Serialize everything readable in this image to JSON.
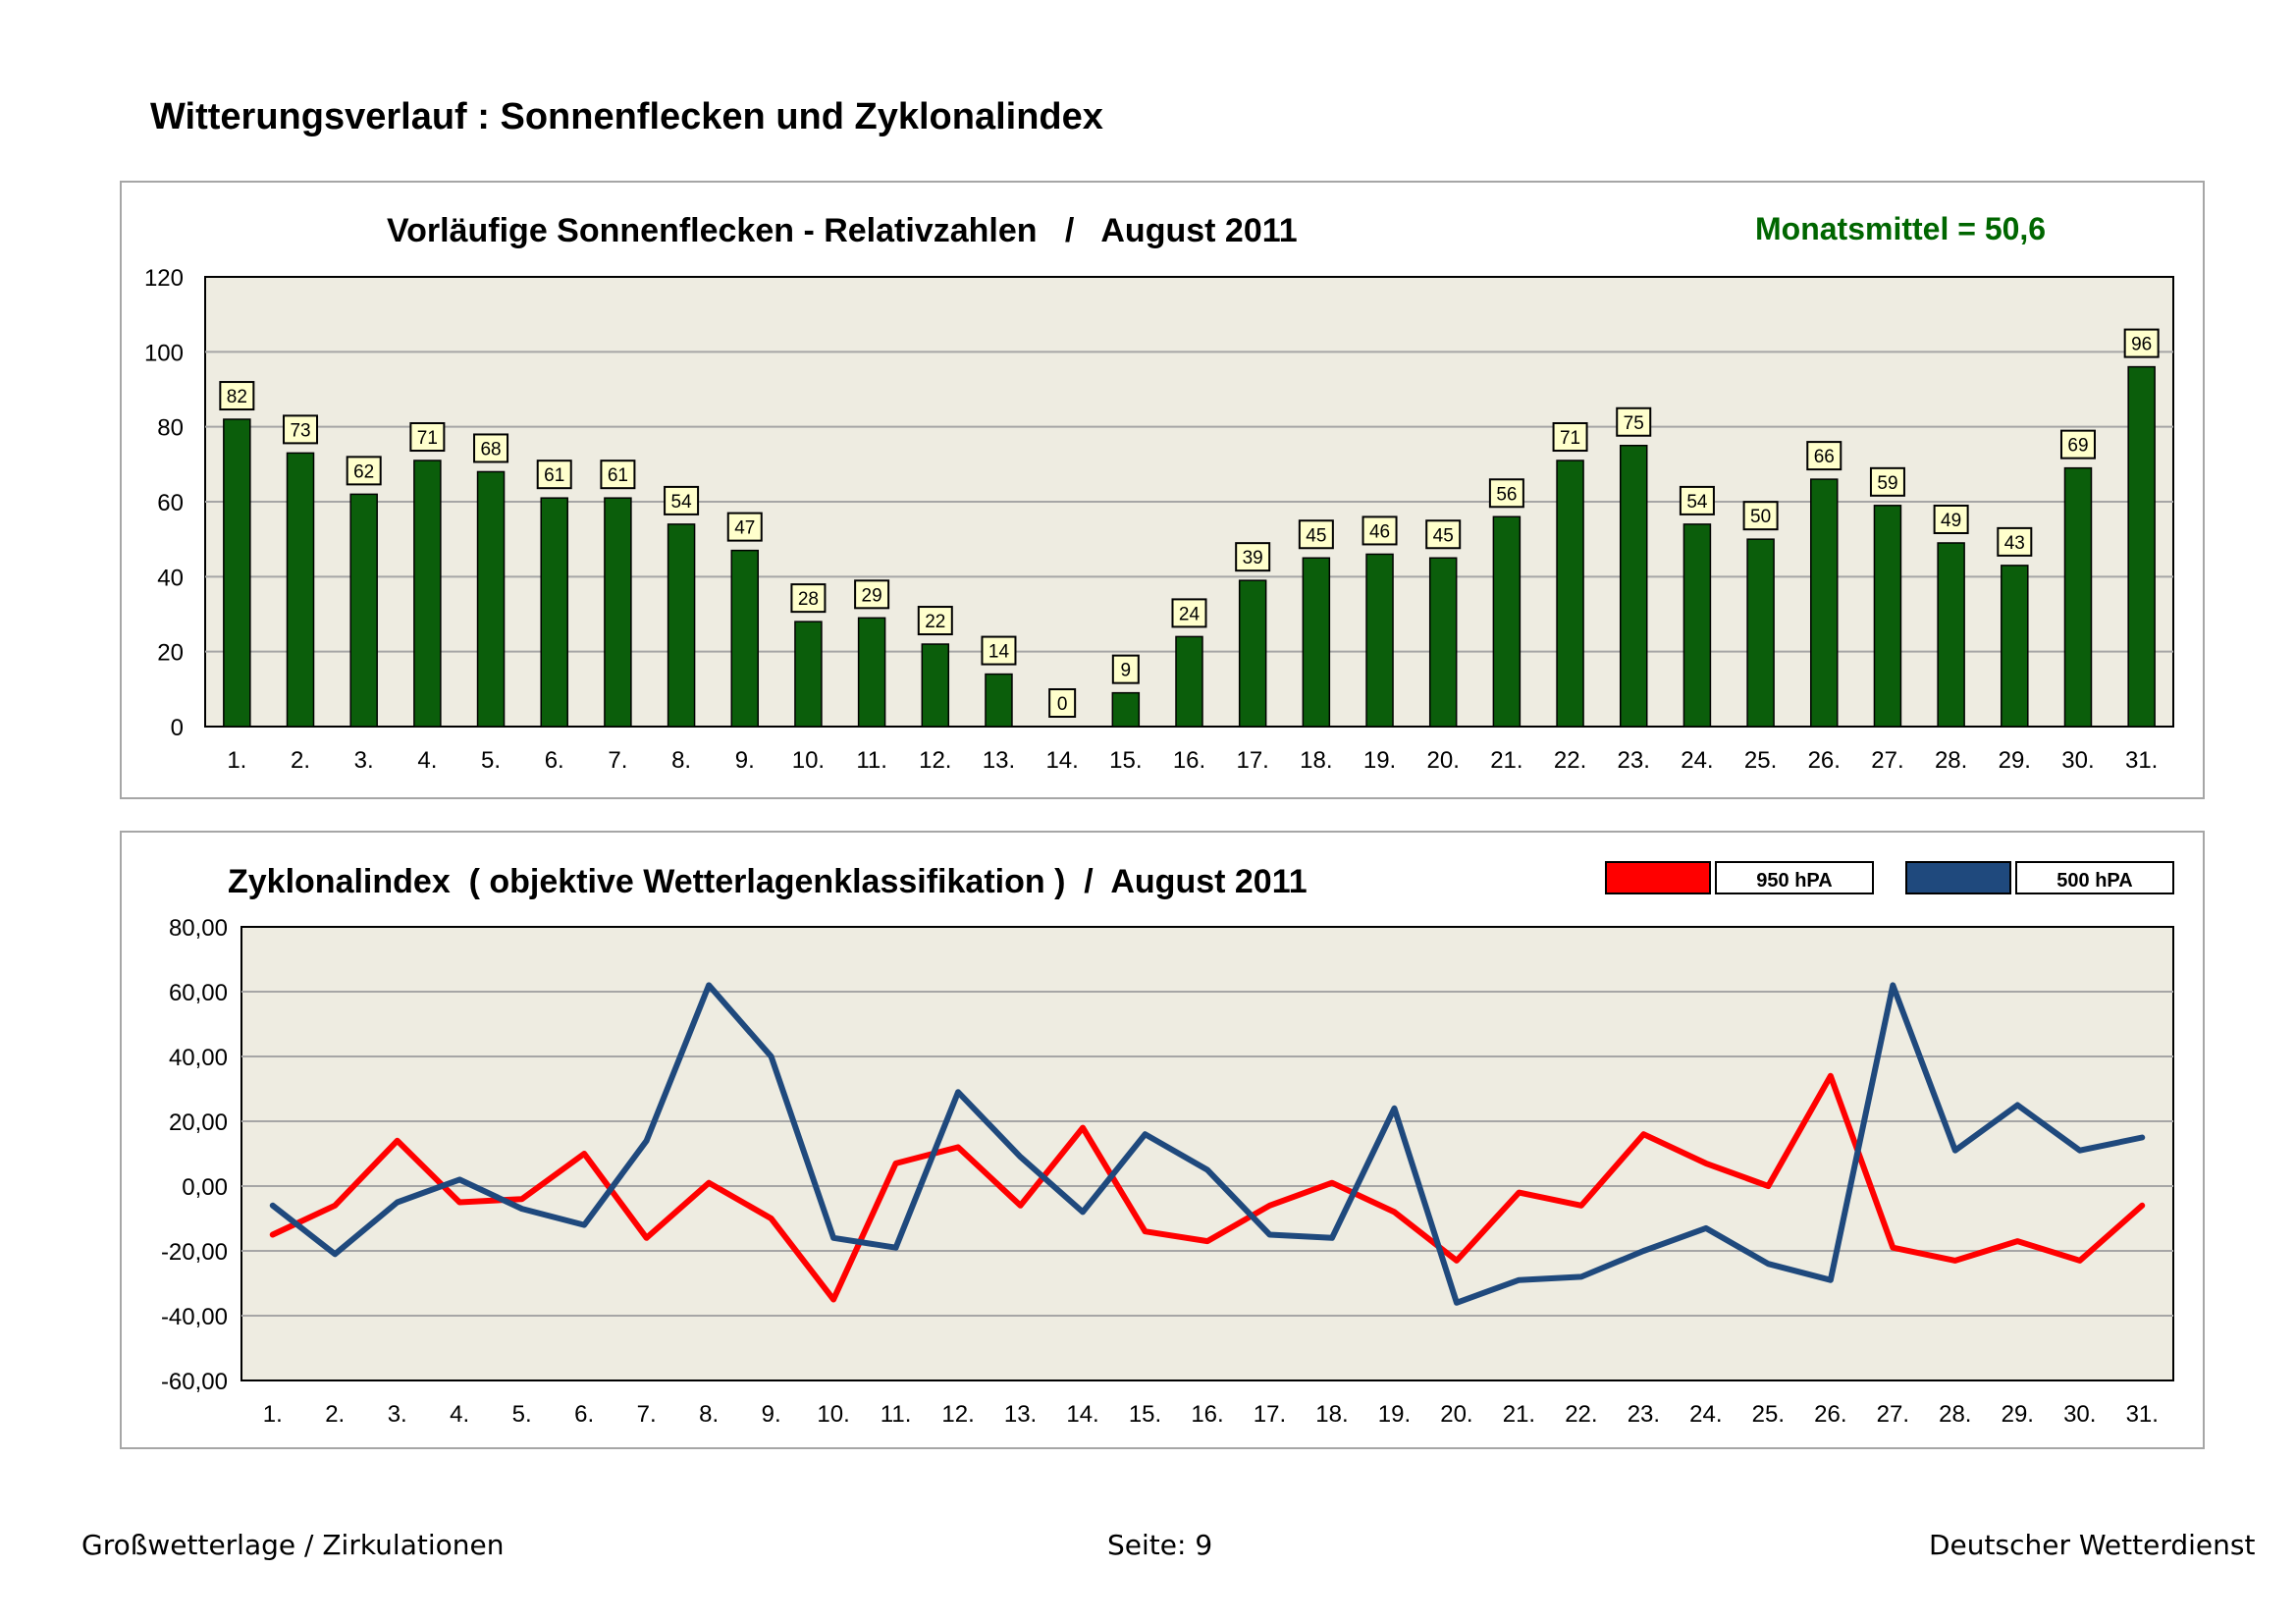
{
  "page": {
    "title": "Witterungsverlauf : Sonnenflecken und Zyklonalindex",
    "footer": {
      "left": "Großwetterlage / Zirkulationen",
      "center": "Seite: 9",
      "right": "Deutscher Wetterdienst"
    }
  },
  "colors": {
    "bar_fill": "#0b5e0b",
    "plot_bg": "#eeece1",
    "grid": "#a6a6a6",
    "series_950": "#ff0000",
    "series_500": "#1f497d",
    "label_bg": "#ffffcc",
    "mean_text": "#006600"
  },
  "chart_data": [
    {
      "type": "bar",
      "title": "Vorläufige Sonnenflecken - Relativzahlen   /   August 2011",
      "annotation": "Monatsmittel = 50,6",
      "categories": [
        "1.",
        "2.",
        "3.",
        "4.",
        "5.",
        "6.",
        "7.",
        "8.",
        "9.",
        "10.",
        "11.",
        "12.",
        "13.",
        "14.",
        "15.",
        "16.",
        "17.",
        "18.",
        "19.",
        "20.",
        "21.",
        "22.",
        "23.",
        "24.",
        "25.",
        "26.",
        "27.",
        "28.",
        "29.",
        "30.",
        "31."
      ],
      "values": [
        82,
        73,
        62,
        71,
        68,
        61,
        61,
        54,
        47,
        28,
        29,
        22,
        14,
        0,
        9,
        24,
        39,
        45,
        46,
        45,
        56,
        71,
        75,
        54,
        50,
        66,
        59,
        49,
        43,
        69,
        96
      ],
      "yticks": [
        "0",
        "20",
        "40",
        "60",
        "80",
        "100",
        "120"
      ],
      "ylim": [
        0,
        120
      ],
      "grid": true
    },
    {
      "type": "line",
      "title": "Zyklonalindex  ( objektive Wetterlagenklassifikation )  /  August 2011",
      "legend_position": "top-right",
      "categories": [
        "1.",
        "2.",
        "3.",
        "4.",
        "5.",
        "6.",
        "7.",
        "8.",
        "9.",
        "10.",
        "11.",
        "12.",
        "13.",
        "14.",
        "15.",
        "16.",
        "17.",
        "18.",
        "19.",
        "20.",
        "21.",
        "22.",
        "23.",
        "24.",
        "25.",
        "26.",
        "27.",
        "28.",
        "29.",
        "30.",
        "31."
      ],
      "series": [
        {
          "name": "950 hPA",
          "values": [
            -15,
            -6,
            14,
            -5,
            -4,
            10,
            -16,
            1,
            -10,
            -35,
            7,
            12,
            -6,
            18,
            -14,
            -17,
            -6,
            1,
            -8,
            -23,
            -2,
            -6,
            16,
            7,
            0,
            34,
            -19,
            -23,
            -17,
            -23,
            -6
          ]
        },
        {
          "name": "500 hPA",
          "values": [
            -6,
            -21,
            -5,
            2,
            -7,
            -12,
            14,
            62,
            40,
            -16,
            -19,
            29,
            9,
            -8,
            16,
            5,
            -15,
            -16,
            24,
            -36,
            -29,
            -28,
            -20,
            -13,
            -24,
            -29,
            62,
            11,
            25,
            11,
            15
          ]
        }
      ],
      "yticks": [
        "-60,00",
        "-40,00",
        "-20,00",
        "0,00",
        "20,00",
        "40,00",
        "60,00",
        "80,00"
      ],
      "ylim": [
        -60,
        80
      ],
      "grid": true
    }
  ]
}
